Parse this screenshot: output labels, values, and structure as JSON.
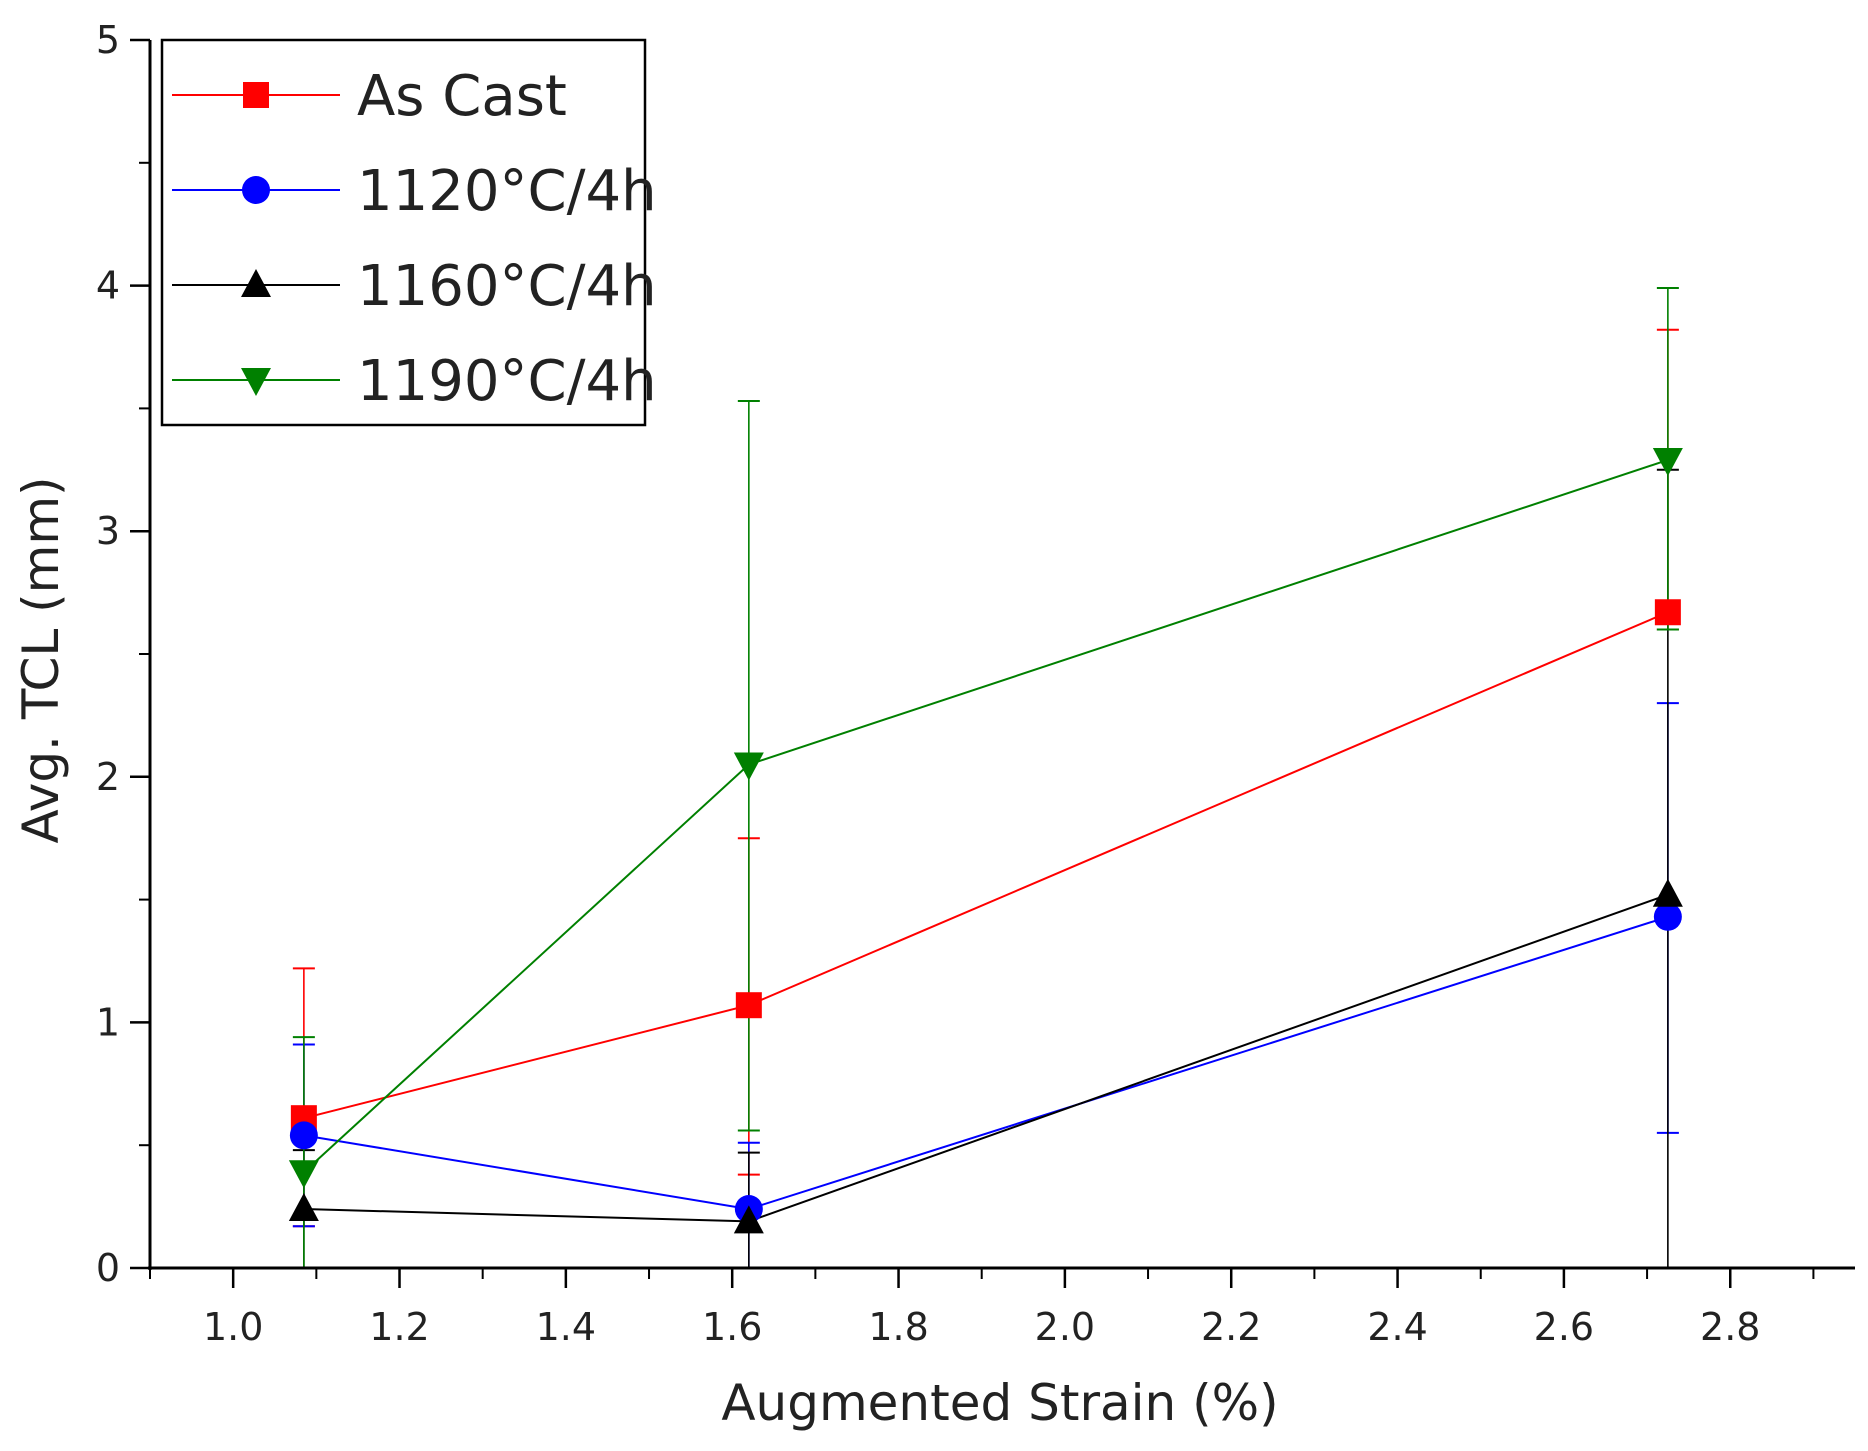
{
  "chart_data": {
    "type": "line",
    "title": "",
    "xlabel": "Augmented Strain (%)",
    "ylabel": "Avg. TCL (mm)",
    "xlim": [
      0.9,
      2.95
    ],
    "ylim": [
      0,
      5
    ],
    "x_ticks": [
      "1.0",
      "1.2",
      "1.4",
      "1.6",
      "1.8",
      "2.0",
      "2.2",
      "2.4",
      "2.6",
      "2.8"
    ],
    "x_tick_values": [
      1.0,
      1.2,
      1.4,
      1.6,
      1.8,
      2.0,
      2.2,
      2.4,
      2.6,
      2.8
    ],
    "y_ticks": [
      "0",
      "1",
      "2",
      "3",
      "4",
      "5"
    ],
    "y_tick_values": [
      0,
      1,
      2,
      3,
      4,
      5
    ],
    "grid": false,
    "legend_position": "top-left",
    "x": [
      1.085,
      1.62,
      2.725
    ],
    "series": [
      {
        "name": "As Cast",
        "color": "#ff0000",
        "marker": "square",
        "values": [
          0.61,
          1.07,
          2.67
        ],
        "err_low": [
          0.17,
          0.38,
          2.6
        ],
        "err_high": [
          1.22,
          1.75,
          3.82
        ]
      },
      {
        "name": "1120°C/4h",
        "color": "#0000ff",
        "marker": "circle",
        "values": [
          0.54,
          0.24,
          1.43
        ],
        "err_low": [
          0.17,
          0.0,
          0.55
        ],
        "err_high": [
          0.91,
          0.51,
          2.3
        ]
      },
      {
        "name": "1160°C/4h",
        "color": "#000000",
        "marker": "triangle-up",
        "values": [
          0.24,
          0.19,
          1.52
        ],
        "err_low": [
          0.0,
          0.0,
          0.0
        ],
        "err_high": [
          0.48,
          0.47,
          3.25
        ]
      },
      {
        "name": "1190°C/4h",
        "color": "#008000",
        "marker": "triangle-down",
        "values": [
          0.39,
          2.05,
          3.29
        ],
        "err_low": [
          0.0,
          0.56,
          2.6
        ],
        "err_high": [
          0.94,
          3.53,
          3.99
        ]
      }
    ]
  }
}
